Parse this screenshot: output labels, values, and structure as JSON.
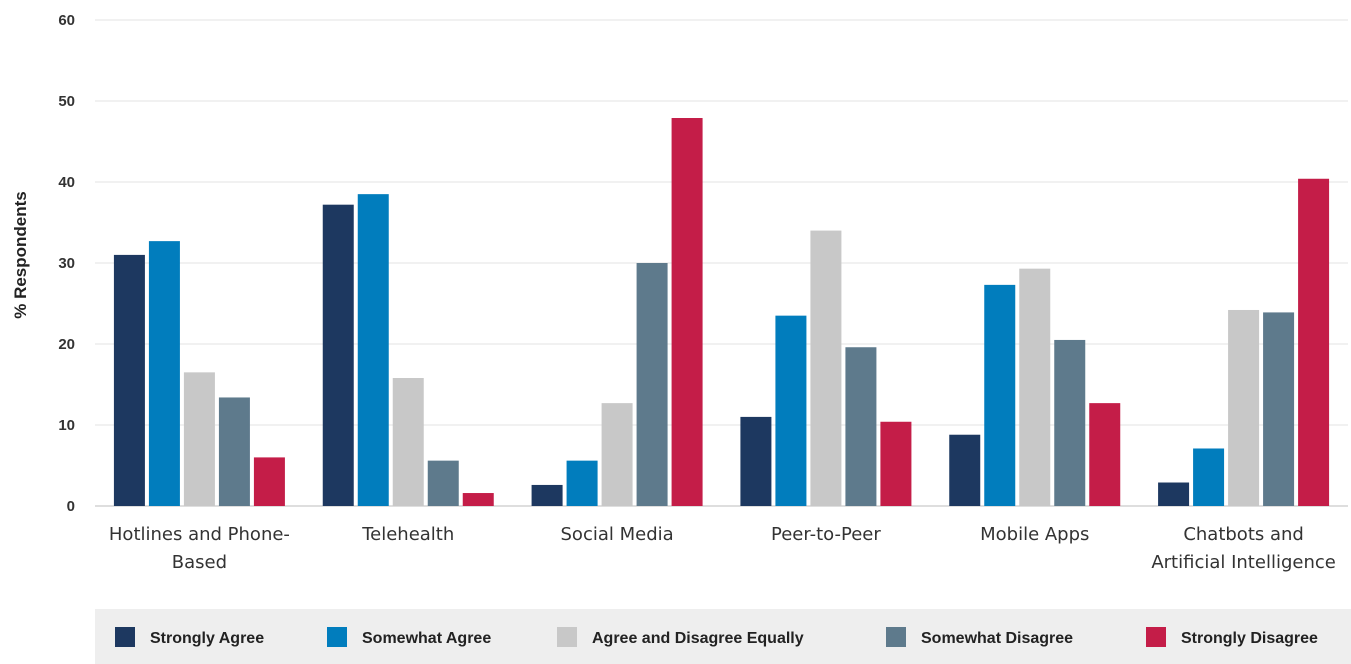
{
  "chart_data": {
    "type": "bar",
    "ylabel": "% Respondents",
    "xlabel": "",
    "ylim": [
      0,
      60
    ],
    "yticks": [
      0,
      10,
      20,
      30,
      40,
      50,
      60
    ],
    "grid": true,
    "legend_position": "bottom",
    "categories": [
      [
        "Hotlines and Phone-",
        "Based"
      ],
      [
        "Telehealth"
      ],
      [
        "Social Media"
      ],
      [
        "Peer-to-Peer"
      ],
      [
        "Mobile Apps"
      ],
      [
        "Chatbots and",
        "Artificial Intelligence"
      ]
    ],
    "series": [
      {
        "name": "Strongly Agree",
        "color": "#1d3860",
        "values": [
          31,
          37.2,
          2.6,
          11,
          8.8,
          2.9
        ]
      },
      {
        "name": "Somewhat Agree",
        "color": "#017dbd",
        "values": [
          32.7,
          38.5,
          5.6,
          23.5,
          27.3,
          7.1
        ]
      },
      {
        "name": "Agree and Disagree Equally",
        "color": "#c8c8c8",
        "values": [
          16.5,
          15.8,
          12.7,
          34,
          29.3,
          24.2
        ]
      },
      {
        "name": "Somewhat Disagree",
        "color": "#5e7a8c",
        "values": [
          13.4,
          5.6,
          30,
          19.6,
          20.5,
          23.9
        ]
      },
      {
        "name": "Strongly Disagree",
        "color": "#c41d48",
        "values": [
          6,
          1.6,
          47.9,
          10.4,
          12.7,
          40.4
        ]
      }
    ]
  }
}
